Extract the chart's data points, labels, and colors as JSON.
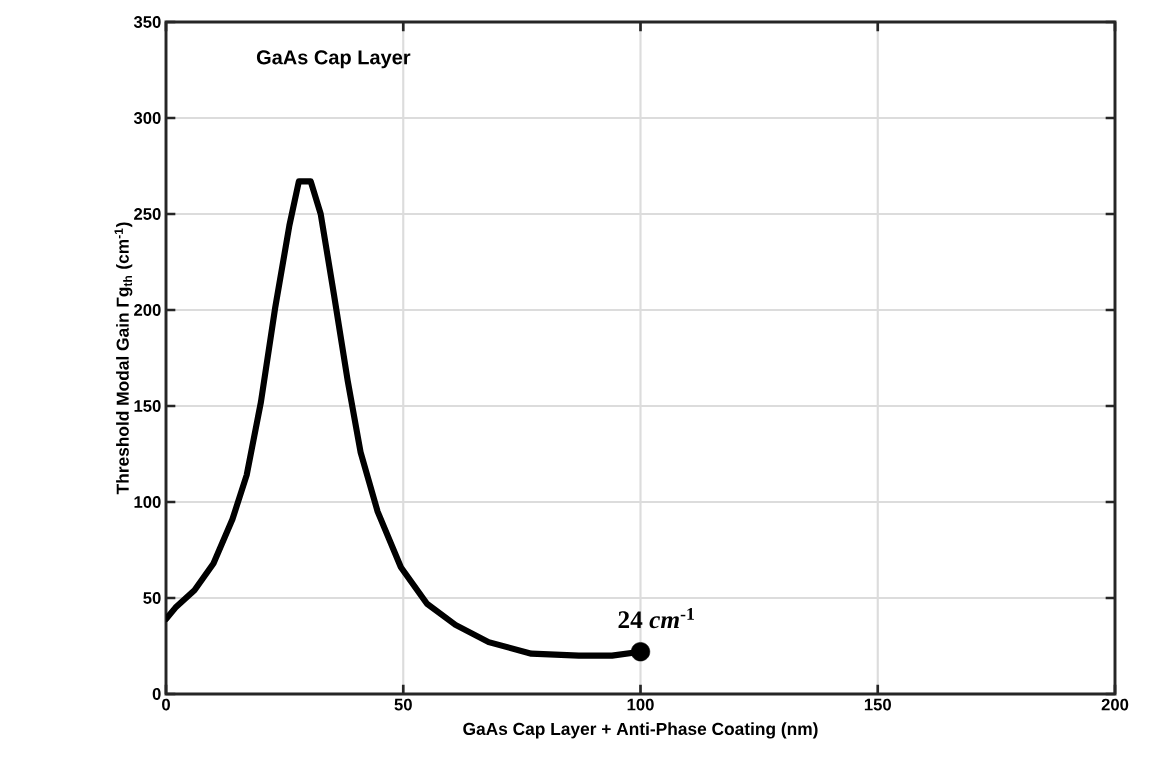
{
  "chart_data": {
    "type": "line",
    "title": "GaAs Cap Layer",
    "xlabel": "GaAs Cap Layer + Anti-Phase Coating (nm)",
    "ylabel": "Threshold Modal Gain          Γg$_{th}$ (cm$^{-1}$)",
    "xlim": [
      0,
      200
    ],
    "xticks": [
      0,
      50,
      100,
      150,
      200
    ],
    "ylim": [
      0,
      350
    ],
    "yticks": [
      0,
      50,
      100,
      150,
      200,
      250,
      300,
      350
    ],
    "grid": true,
    "series": [
      {
        "color": "#000000",
        "x": [
          0,
          2,
          6,
          10,
          14,
          17,
          20,
          23,
          26,
          28,
          30.5,
          32.6,
          35.4,
          38.3,
          41,
          44.6,
          49.5,
          55,
          61,
          68,
          77,
          87,
          94,
          100
        ],
        "values": [
          39,
          45,
          54,
          68,
          91,
          114,
          152,
          201,
          244,
          267,
          267,
          250,
          208,
          163,
          126,
          95,
          66,
          47,
          36,
          27,
          21,
          20,
          20,
          22
        ]
      },
      {
        "type": "scatter",
        "color": "#000000",
        "marker": "circle",
        "x": [
          100
        ],
        "values": [
          22
        ]
      }
    ],
    "annotations": [
      {
        "text": "24 *cm*$^{-1}$",
        "x": 100,
        "y": 22
      }
    ]
  }
}
